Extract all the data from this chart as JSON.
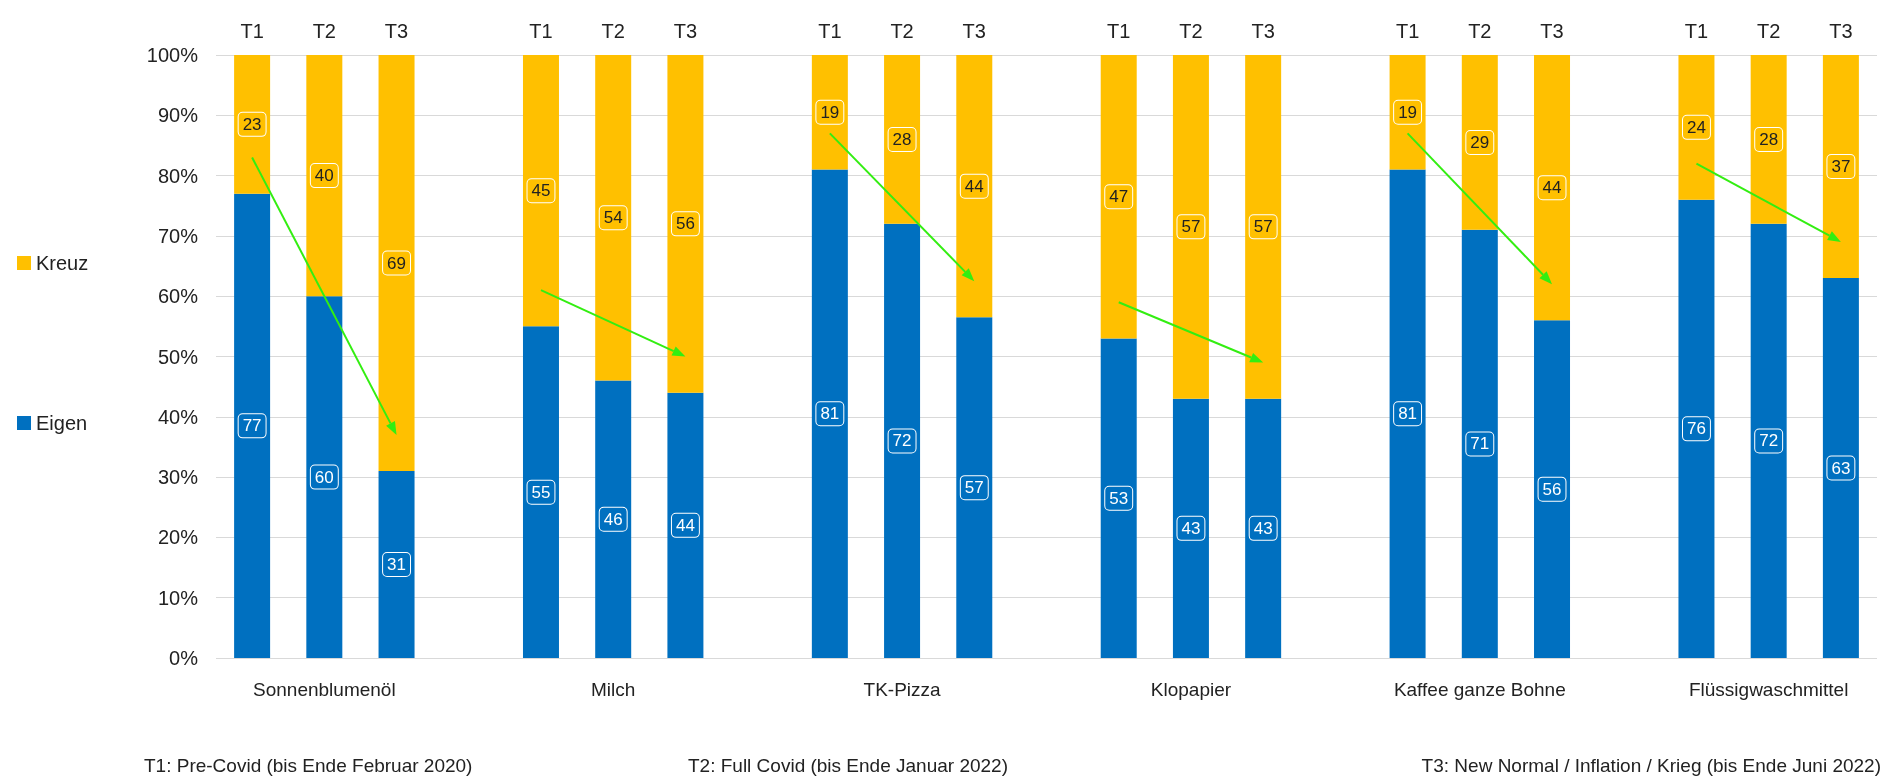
{
  "chart_data": {
    "type": "bar",
    "stacked": true,
    "categories": [
      "T1",
      "T2",
      "T3",
      "T1",
      "T2",
      "T3",
      "T1",
      "T2",
      "T3",
      "T1",
      "T2",
      "T3",
      "T1",
      "T2",
      "T3",
      "T1",
      "T2",
      "T3"
    ],
    "series": [
      {
        "name": "Eigen",
        "color": "#0070c0",
        "values": [
          77,
          60,
          31,
          55,
          46,
          44,
          81,
          72,
          56.5,
          53,
          43,
          43,
          81,
          71,
          56,
          76,
          72,
          63
        ],
        "value_labels": [
          "77",
          "60",
          "31",
          "55",
          "46",
          "44",
          "81",
          "72",
          "57",
          "53",
          "43",
          "43",
          "81",
          "71",
          "56",
          "76",
          "72",
          "63"
        ]
      },
      {
        "name": "Kreuz",
        "color": "#ffc000",
        "values": [
          23,
          40,
          69,
          45,
          54,
          56,
          19,
          28,
          43.5,
          47,
          57,
          57,
          19,
          29,
          44,
          24,
          28,
          37
        ],
        "value_labels": [
          "23",
          "40",
          "69",
          "45",
          "54",
          "56",
          "19",
          "28",
          "44",
          "47",
          "57",
          "57",
          "19",
          "29",
          "44",
          "24",
          "28",
          "37"
        ]
      }
    ],
    "ylim": [
      0,
      100
    ],
    "yticks": [
      {
        "value": 0,
        "label": "0%"
      },
      {
        "value": 10,
        "label": "10%"
      },
      {
        "value": 20,
        "label": "20%"
      },
      {
        "value": 30,
        "label": "30%"
      },
      {
        "value": 40,
        "label": "40%"
      },
      {
        "value": 50,
        "label": "50%"
      },
      {
        "value": 60,
        "label": "60%"
      },
      {
        "value": 70,
        "label": "70%"
      },
      {
        "value": 80,
        "label": "80%"
      },
      {
        "value": 90,
        "label": "90%"
      },
      {
        "value": 100,
        "label": "100%"
      }
    ],
    "grid": "y",
    "legend": "left",
    "annotations": [
      "Sonnenblumenöl",
      "Milch",
      "TK-Pizza",
      "Klopapier",
      "Kaffee ganze Bohne",
      "Flüssigwaschmittel",
      "T1: Pre-Covid (bis Ende Februar 2020)",
      "T2: Full Covid (bis Ende Januar 2022)",
      "T3: New Normal / Inflation / Krieg (bis Ende Juni 2022)"
    ]
  }
}
